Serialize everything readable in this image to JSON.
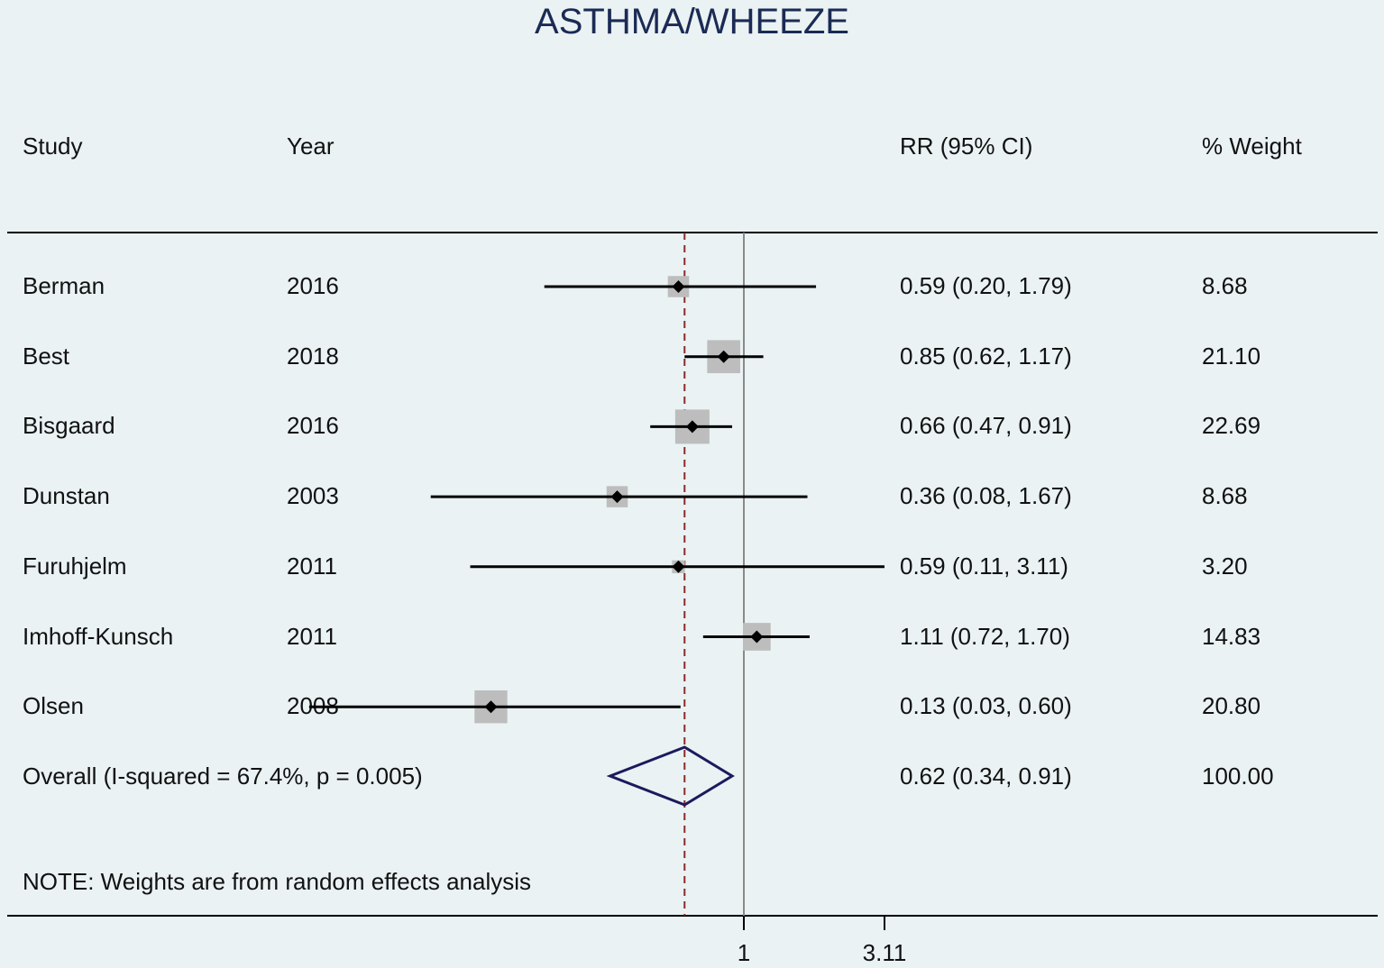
{
  "chart_data": {
    "type": "forest",
    "title": "ASTHMA/WHEEZE",
    "columns": {
      "study": "Study",
      "year": "Year",
      "effect": "RR (95% CI)",
      "weight": "% Weight"
    },
    "x_scale": "log",
    "reference_line": 1,
    "overall_line": 0.62,
    "xticks": [
      {
        "value": 1,
        "label": "1"
      },
      {
        "value": 3.11,
        "label": "3.11"
      }
    ],
    "studies": [
      {
        "study": "Berman",
        "year": "2016",
        "rr": 0.59,
        "lo": 0.2,
        "hi": 1.79,
        "ci_text": "0.59 (0.20, 1.79)",
        "weight": 8.68,
        "weight_text": "8.68"
      },
      {
        "study": "Best",
        "year": "2018",
        "rr": 0.85,
        "lo": 0.62,
        "hi": 1.17,
        "ci_text": "0.85 (0.62, 1.17)",
        "weight": 21.1,
        "weight_text": "21.10"
      },
      {
        "study": "Bisgaard",
        "year": "2016",
        "rr": 0.66,
        "lo": 0.47,
        "hi": 0.91,
        "ci_text": "0.66 (0.47, 0.91)",
        "weight": 22.69,
        "weight_text": "22.69"
      },
      {
        "study": "Dunstan",
        "year": "2003",
        "rr": 0.36,
        "lo": 0.08,
        "hi": 1.67,
        "ci_text": "0.36 (0.08, 1.67)",
        "weight": 8.68,
        "weight_text": "8.68"
      },
      {
        "study": "Furuhjelm",
        "year": "2011",
        "rr": 0.59,
        "lo": 0.11,
        "hi": 3.11,
        "ci_text": "0.59 (0.11, 3.11)",
        "weight": 3.2,
        "weight_text": "3.20"
      },
      {
        "study": "Imhoff-Kunsch",
        "year": "2011",
        "rr": 1.11,
        "lo": 0.72,
        "hi": 1.7,
        "ci_text": "1.11 (0.72, 1.70)",
        "weight": 14.83,
        "weight_text": "14.83"
      },
      {
        "study": "Olsen",
        "year": "2008",
        "rr": 0.13,
        "lo": 0.03,
        "hi": 0.6,
        "ci_text": "0.13 (0.03, 0.60)",
        "weight": 20.8,
        "weight_text": "20.80"
      }
    ],
    "overall": {
      "label": "Overall  (I-squared = 67.4%, p = 0.005)",
      "rr": 0.62,
      "lo": 0.34,
      "hi": 0.91,
      "ci_text": "0.62 (0.34, 0.91)",
      "weight_text": "100.00"
    },
    "note": "NOTE: Weights are from random effects analysis",
    "colors": {
      "background": "#eaf2f3",
      "weight_box": "#bdbdbd",
      "reference_line": "#8a8a8a",
      "overall_line": "#8b2a2a",
      "diamond": "#1b1a5e",
      "title": "#1b2a55"
    }
  }
}
